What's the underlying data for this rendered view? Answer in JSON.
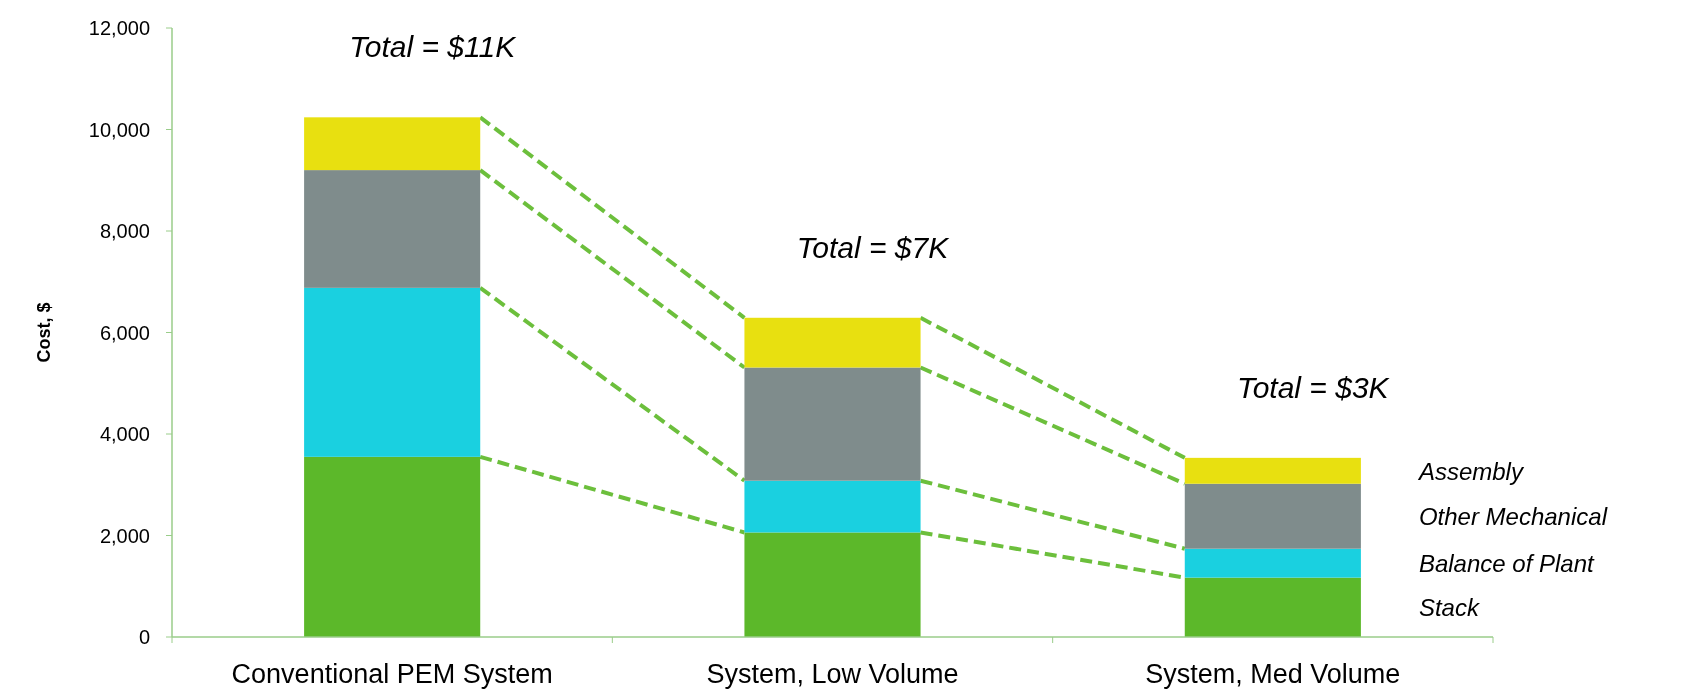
{
  "chart_data": {
    "type": "bar",
    "stacked": true,
    "ylabel": "Cost, $",
    "categories": [
      "Conventional PEM System",
      "System, Low Volume",
      "System, Med Volume"
    ],
    "series": [
      {
        "name": "Stack",
        "color": "#5cb82a",
        "values": [
          3550,
          2060,
          1170
        ]
      },
      {
        "name": "Balance of Plant",
        "color": "#1ad0e0",
        "values": [
          3330,
          1020,
          570
        ]
      },
      {
        "name": "Other Mechanical",
        "color": "#7f8c8c",
        "values": [
          2320,
          2230,
          1280
        ]
      },
      {
        "name": "Assembly",
        "color": "#e8e010",
        "values": [
          1040,
          980,
          510
        ]
      }
    ],
    "ylim": [
      0,
      12000
    ],
    "yticks": [
      {
        "value": 0,
        "label": "0"
      },
      {
        "value": 2000,
        "label": "2,000"
      },
      {
        "value": 4000,
        "label": "4,000"
      },
      {
        "value": 6000,
        "label": "6,000"
      },
      {
        "value": 8000,
        "label": "8,000"
      },
      {
        "value": 10000,
        "label": "10,000"
      },
      {
        "value": 12000,
        "label": "12,000"
      }
    ],
    "totals": [
      "Total = $11K",
      "Total = $7K",
      "Total = $3K"
    ]
  }
}
